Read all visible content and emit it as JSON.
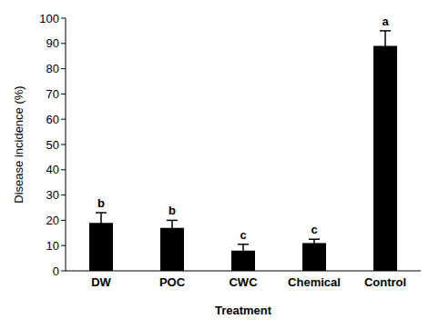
{
  "chart_data": {
    "type": "bar",
    "categories": [
      "DW",
      "POC",
      "CWC",
      "Chemical",
      "Control"
    ],
    "values": [
      19,
      17,
      8,
      11,
      89
    ],
    "errors": [
      4,
      3,
      2.5,
      1.5,
      6
    ],
    "annotations": [
      "b",
      "b",
      "c",
      "c",
      "a"
    ],
    "color": "#000000",
    "x_label": "Treatment",
    "y_label": "Disease incidence (%)",
    "ylim": [
      0,
      100
    ],
    "yticks": [
      0,
      10,
      20,
      30,
      40,
      50,
      60,
      70,
      80,
      90,
      100
    ],
    "grid": false
  }
}
